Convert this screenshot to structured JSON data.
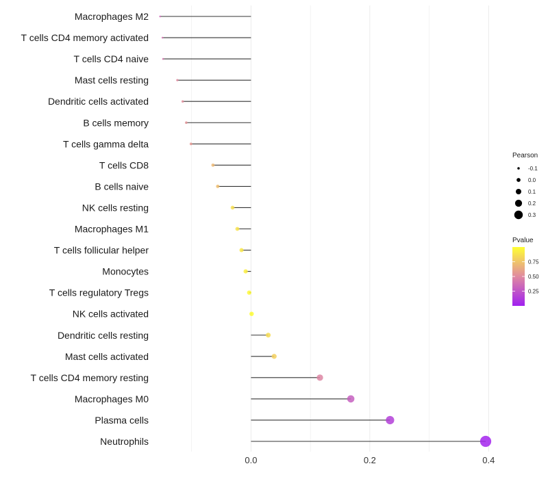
{
  "chart_data": {
    "type": "lollipop",
    "xlim": [
      -0.155,
      0.41
    ],
    "x_ticks": [
      {
        "value": 0.0,
        "label": "0.0"
      },
      {
        "value": 0.2,
        "label": "0.2"
      },
      {
        "value": 0.4,
        "label": "0.4"
      }
    ],
    "minor_gridlines": [
      -0.1,
      0.1,
      0.3
    ],
    "points": [
      {
        "category": "Macrophages M2",
        "value": -0.153,
        "pvalue": 0.35,
        "pearson": -0.153
      },
      {
        "category": "T cells CD4 memory activated",
        "value": -0.149,
        "pvalue": 0.4,
        "pearson": -0.149
      },
      {
        "category": "T cells CD4 naive",
        "value": -0.148,
        "pvalue": 0.41,
        "pearson": -0.148
      },
      {
        "category": "Mast cells resting",
        "value": -0.124,
        "pvalue": 0.5,
        "pearson": -0.124
      },
      {
        "category": "Dendritic cells activated",
        "value": -0.115,
        "pvalue": 0.52,
        "pearson": -0.115
      },
      {
        "category": "B cells memory",
        "value": -0.109,
        "pvalue": 0.54,
        "pearson": -0.109
      },
      {
        "category": "T cells gamma delta",
        "value": -0.101,
        "pvalue": 0.56,
        "pearson": -0.101
      },
      {
        "category": "T cells CD8",
        "value": -0.064,
        "pvalue": 0.7,
        "pearson": -0.064
      },
      {
        "category": "B cells naive",
        "value": -0.056,
        "pvalue": 0.72,
        "pearson": -0.056
      },
      {
        "category": "NK cells resting",
        "value": -0.031,
        "pvalue": 0.86,
        "pearson": -0.031
      },
      {
        "category": "Macrophages M1",
        "value": -0.023,
        "pvalue": 0.88,
        "pearson": -0.023
      },
      {
        "category": "T cells follicular helper",
        "value": -0.016,
        "pvalue": 0.9,
        "pearson": -0.016
      },
      {
        "category": "Monocytes",
        "value": -0.009,
        "pvalue": 0.93,
        "pearson": -0.009
      },
      {
        "category": "T cells regulatory  Tregs",
        "value": -0.003,
        "pvalue": 0.97,
        "pearson": -0.003
      },
      {
        "category": "NK cells activated",
        "value": 0.001,
        "pvalue": 0.99,
        "pearson": 0.001
      },
      {
        "category": "Dendritic cells resting",
        "value": 0.029,
        "pvalue": 0.85,
        "pearson": 0.029
      },
      {
        "category": "Mast cells activated",
        "value": 0.039,
        "pvalue": 0.8,
        "pearson": 0.039
      },
      {
        "category": "T cells CD4 memory resting",
        "value": 0.116,
        "pvalue": 0.48,
        "pearson": 0.116
      },
      {
        "category": "Macrophages M0",
        "value": 0.168,
        "pvalue": 0.3,
        "pearson": 0.168
      },
      {
        "category": "Plasma cells",
        "value": 0.234,
        "pvalue": 0.15,
        "pearson": 0.234
      },
      {
        "category": "Neutrophils",
        "value": 0.395,
        "pvalue": 0.02,
        "pearson": 0.395
      }
    ],
    "size_legend": {
      "title": "Pearson",
      "entries": [
        {
          "label": "-0.1",
          "value": -0.1
        },
        {
          "label": "0.0",
          "value": 0.0
        },
        {
          "label": "0.1",
          "value": 0.1
        },
        {
          "label": "0.2",
          "value": 0.2
        },
        {
          "label": "0.3",
          "value": 0.3
        }
      ]
    },
    "color_legend": {
      "title": "Pvalue",
      "range": [
        0.0,
        1.0
      ],
      "ticks": [
        {
          "label": "0.75",
          "value": 0.75
        },
        {
          "label": "0.50",
          "value": 0.5
        },
        {
          "label": "0.25",
          "value": 0.25
        }
      ],
      "low_color": "#a020f0",
      "high_color": "#ffff33"
    },
    "colors": {
      "stem": "#333333",
      "gridline": "#ebebeb"
    }
  }
}
